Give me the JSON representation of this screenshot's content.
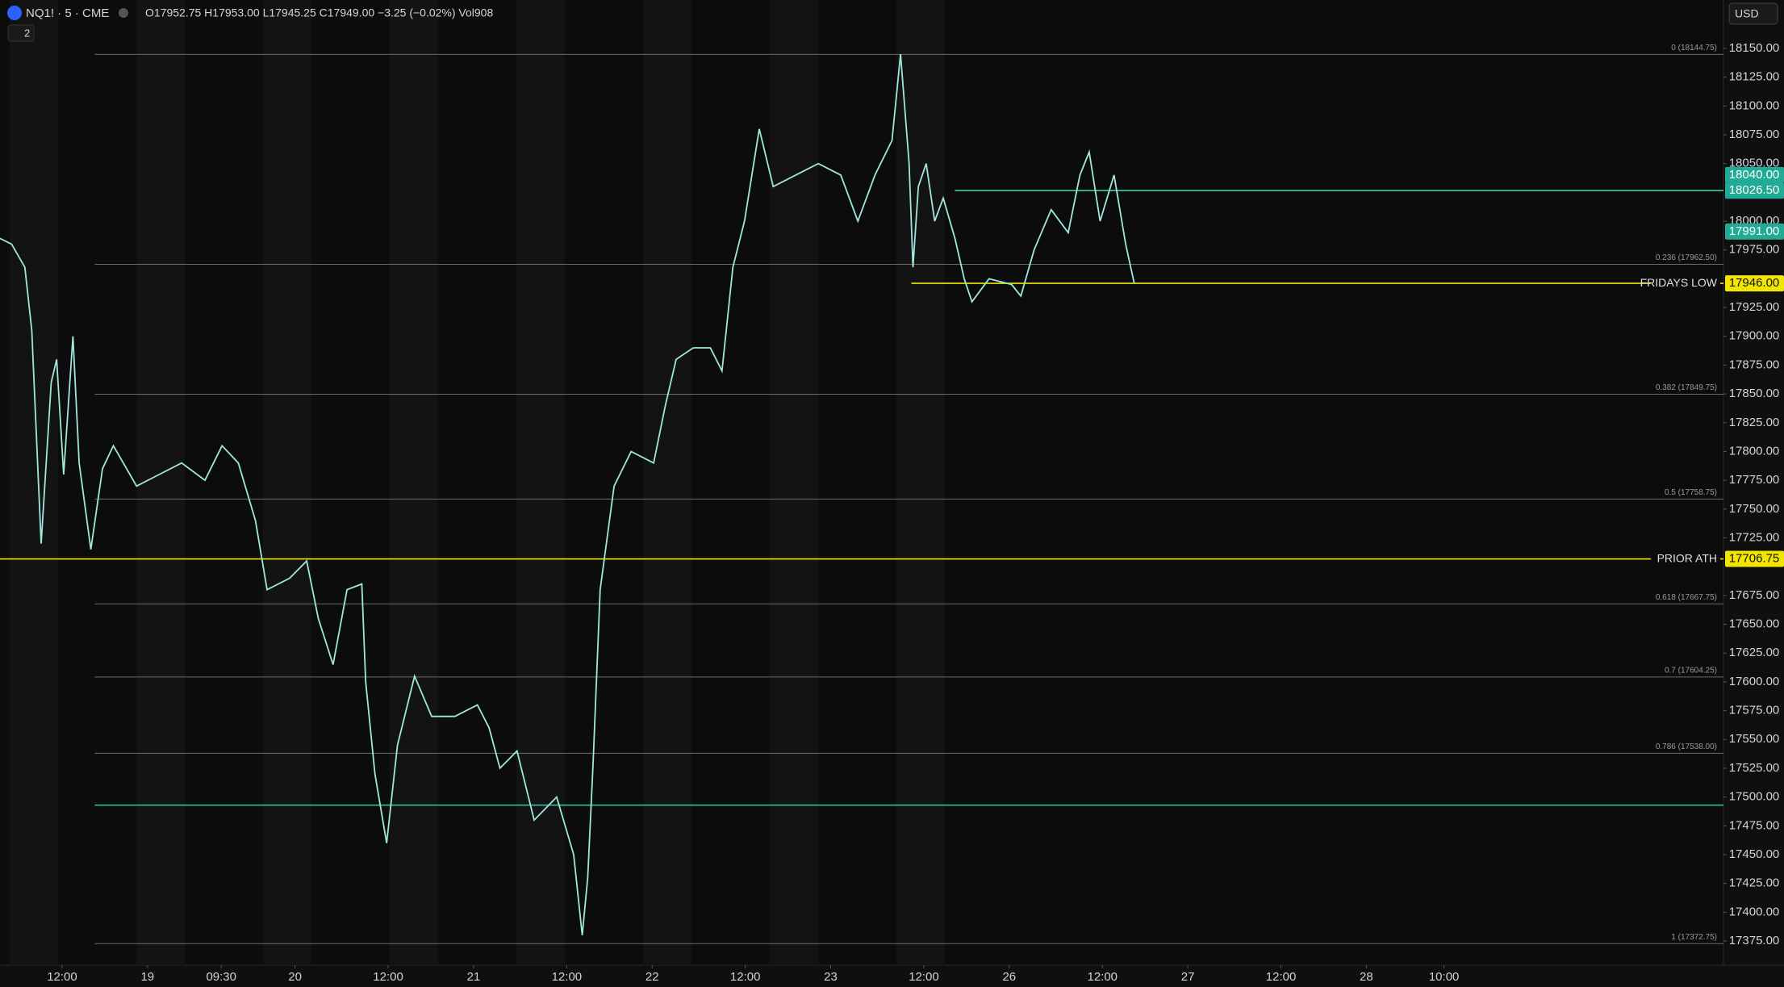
{
  "header": {
    "symbol": "NQ1! · 5 · CME",
    "ohlc": "O17952.75 H17953.00 L17945.25 C17949.00 −3.25 (−0.02%) Vol908",
    "indicators": "2",
    "currency": "USD"
  },
  "chart_data": {
    "type": "line",
    "color": "#9fe8dc",
    "x": [
      0,
      1.5,
      3.2,
      4.1,
      5.3,
      6.6,
      7.3,
      8.2,
      9.4,
      10.2,
      11.7,
      13.2,
      14.6,
      17.6,
      20.5,
      23.4,
      26.4,
      28.6,
      30.7,
      32.9,
      34.4,
      37.3,
      39.5,
      41,
      42.9,
      44.7,
      46.6,
      47.1,
      48.3,
      49.8,
      51.2,
      53.4,
      55.6,
      58.6,
      61.5,
      63,
      64.4,
      66.6,
      68.8,
      71.7,
      73.9,
      75,
      75.7,
      76.4,
      77.3,
      79.1,
      81.3,
      84.2,
      85.7,
      87.1,
      89.3,
      91.5,
      93,
      94.4,
      95.9,
      97.8,
      99.6,
      102.5,
      105.4,
      108.3,
      110.5,
      112.7,
      114.9,
      116,
      117.1,
      117.6,
      118.3,
      119.3,
      120.4,
      121.5,
      123,
      124.2,
      125.2,
      127.4,
      130.3,
      131.5,
      133.2,
      135.4,
      137.6,
      139.1,
      140.3,
      141.7,
      143.5,
      145,
      146.1
    ],
    "values": [
      17985,
      17980,
      17960,
      17905,
      17720,
      17860,
      17880,
      17780,
      17900,
      17790,
      17715,
      17785,
      17805,
      17770,
      17780,
      17790,
      17775,
      17805,
      17790,
      17740,
      17680,
      17690,
      17705,
      17655,
      17615,
      17680,
      17685,
      17600,
      17520,
      17460,
      17545,
      17605,
      17570,
      17570,
      17580,
      17560,
      17525,
      17540,
      17480,
      17500,
      17450,
      17380,
      17430,
      17530,
      17680,
      17770,
      17800,
      17790,
      17840,
      17880,
      17890,
      17890,
      17870,
      17960,
      18000,
      18080,
      18030,
      18040,
      18050,
      18040,
      18000,
      18040,
      18070,
      18145,
      18050,
      17960,
      18030,
      18050,
      18000,
      18020,
      17985,
      17950,
      17930,
      17950,
      17945,
      17935,
      17975,
      18010,
      17990,
      18040,
      18060,
      18000,
      18040,
      17980,
      17946
    ],
    "xlim": [
      0,
      222
    ],
    "xticks": [
      {
        "value": 8,
        "label": "12:00"
      },
      {
        "value": 19,
        "label": "19"
      },
      {
        "value": 28.5,
        "label": "09:30"
      },
      {
        "value": 38,
        "label": "20"
      },
      {
        "value": 50,
        "label": "12:00"
      },
      {
        "value": 61,
        "label": "21"
      },
      {
        "value": 73,
        "label": "12:00"
      },
      {
        "value": 84,
        "label": "22"
      },
      {
        "value": 96,
        "label": "12:00"
      },
      {
        "value": 107,
        "label": "23"
      },
      {
        "value": 119,
        "label": "12:00"
      },
      {
        "value": 130,
        "label": "26"
      },
      {
        "value": 142,
        "label": "12:00"
      },
      {
        "value": 153,
        "label": "27"
      },
      {
        "value": 165,
        "label": "12:00"
      },
      {
        "value": 176,
        "label": "28"
      },
      {
        "value": 186,
        "label": "10:00"
      }
    ],
    "ylim": [
      17354,
      18192
    ],
    "yticks": [
      {
        "value": 17375,
        "label": "17375.00"
      },
      {
        "value": 17400,
        "label": "17400.00"
      },
      {
        "value": 17425,
        "label": "17425.00"
      },
      {
        "value": 17450,
        "label": "17450.00"
      },
      {
        "value": 17475,
        "label": "17475.00"
      },
      {
        "value": 17500,
        "label": "17500.00"
      },
      {
        "value": 17525,
        "label": "17525.00"
      },
      {
        "value": 17550,
        "label": "17550.00"
      },
      {
        "value": 17575,
        "label": "17575.00"
      },
      {
        "value": 17600,
        "label": "17600.00"
      },
      {
        "value": 17625,
        "label": "17625.00"
      },
      {
        "value": 17650,
        "label": "17650.00"
      },
      {
        "value": 17675,
        "label": "17675.00"
      },
      {
        "value": 17725,
        "label": "17725.00"
      },
      {
        "value": 17750,
        "label": "17750.00"
      },
      {
        "value": 17775,
        "label": "17775.00"
      },
      {
        "value": 17800,
        "label": "17800.00"
      },
      {
        "value": 17825,
        "label": "17825.00"
      },
      {
        "value": 17850,
        "label": "17850.00"
      },
      {
        "value": 17875,
        "label": "17875.00"
      },
      {
        "value": 17900,
        "label": "17900.00"
      },
      {
        "value": 17925,
        "label": "17925.00"
      },
      {
        "value": 17975,
        "label": "17975.00"
      },
      {
        "value": 18000,
        "label": "18000.00"
      },
      {
        "value": 18050,
        "label": "18050.00"
      },
      {
        "value": 18075,
        "label": "18075.00"
      },
      {
        "value": 18100,
        "label": "18100.00"
      },
      {
        "value": 18125,
        "label": "18125.00"
      },
      {
        "value": 18150,
        "label": "18150.00"
      }
    ],
    "levels": [
      {
        "value": 18144.75,
        "label": "0 (18144.75)",
        "color": "#6b6b6b",
        "start": 12.2
      },
      {
        "value": 17962.5,
        "label": "0.236 (17962.50)",
        "color": "#6b6b6b",
        "start": 12.2
      },
      {
        "value": 17849.75,
        "label": "0.382 (17849.75)",
        "color": "#6b6b6b",
        "start": 12.2
      },
      {
        "value": 17758.75,
        "label": "0.5 (17758.75)",
        "color": "#6b6b6b",
        "start": 12.2
      },
      {
        "value": 17667.75,
        "label": "0.618 (17667.75)",
        "color": "#6b6b6b",
        "start": 12.2
      },
      {
        "value": 17604.25,
        "label": "0.7 (17604.25)",
        "color": "#6b6b6b",
        "start": 12.2
      },
      {
        "value": 17538,
        "label": "0.786 (17538.00)",
        "color": "#6b6b6b",
        "start": 12.2
      },
      {
        "value": 17372.75,
        "label": "1 (17372.75)",
        "color": "#6b6b6b",
        "start": 12.2
      },
      {
        "value": 17706.75,
        "label": "PRIOR ATH",
        "color": "#f2e600",
        "start": 0
      },
      {
        "value": 17946,
        "label": "FRIDAYS LOW",
        "color": "#f2e600",
        "start": 117.4
      },
      {
        "value": 18026.5,
        "color": "#2ed1a6",
        "start": 123
      },
      {
        "value": 17493,
        "color": "#2ed1a6",
        "start": 12.2
      }
    ],
    "price_labels": [
      {
        "value": 18040,
        "label": "18040.00",
        "color": "#22ab94"
      },
      {
        "value": 18026.5,
        "label": "18026.50",
        "color": "#22ab94"
      },
      {
        "value": 17991,
        "label": "17991.00",
        "color": "#22ab94"
      },
      {
        "value": 17946,
        "label": "17946.00",
        "color": "#f2e600"
      },
      {
        "value": 17706.75,
        "label": "17706.75",
        "color": "#f2e600"
      }
    ]
  }
}
